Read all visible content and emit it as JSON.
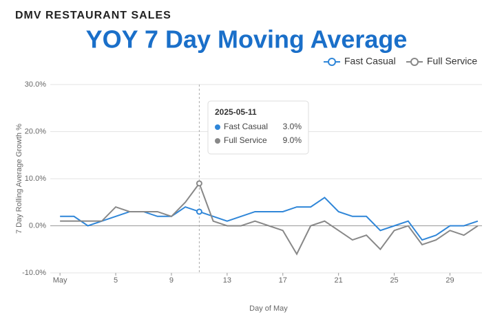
{
  "chart_data": {
    "type": "line",
    "heading": "DMV RESTAURANT SALES",
    "title": "YOY 7 Day Moving Average",
    "ylabel": "7 Day Rolling Average Growth %",
    "xlabel": "Day of May",
    "x": [
      1,
      2,
      3,
      4,
      5,
      6,
      7,
      8,
      9,
      10,
      11,
      12,
      13,
      14,
      15,
      16,
      17,
      18,
      19,
      20,
      21,
      22,
      23,
      24,
      25,
      26,
      27,
      28,
      29,
      30,
      31
    ],
    "series": [
      {
        "name": "Fast Casual",
        "color": "#2f86d8",
        "values": [
          2,
          2,
          0,
          1,
          2,
          3,
          3,
          2,
          2,
          4,
          3,
          2,
          1,
          2,
          3,
          3,
          3,
          4,
          4,
          6,
          3,
          2,
          2,
          -1,
          0,
          1,
          -3,
          -2,
          0,
          0,
          1
        ]
      },
      {
        "name": "Full Service",
        "color": "#888888",
        "values": [
          1,
          1,
          1,
          1,
          4,
          3,
          3,
          3,
          2,
          5,
          9,
          1,
          0,
          0,
          1,
          0,
          -1,
          -6,
          0,
          1,
          -1,
          -3,
          -2,
          -5,
          -1,
          0,
          -4,
          -3,
          -1,
          -2,
          0
        ]
      }
    ],
    "xlim": [
      0.3,
      31.3
    ],
    "xticks": [
      {
        "value": 1,
        "label": "May"
      },
      5,
      9,
      13,
      17,
      21,
      25,
      29
    ],
    "ylim": [
      -10,
      30
    ],
    "yticks": [
      {
        "value": -10,
        "label": "-10.0%"
      },
      {
        "value": 0,
        "label": "0.0%"
      },
      {
        "value": 10,
        "label": "10.0%"
      },
      {
        "value": 20,
        "label": "20.0%"
      },
      {
        "value": 30,
        "label": "30.0%"
      }
    ],
    "grid": true,
    "legend": "top-right",
    "tooltip": {
      "index": 10,
      "title": "2025-05-11",
      "labels": [
        "3.0%",
        "9.0%"
      ]
    }
  }
}
